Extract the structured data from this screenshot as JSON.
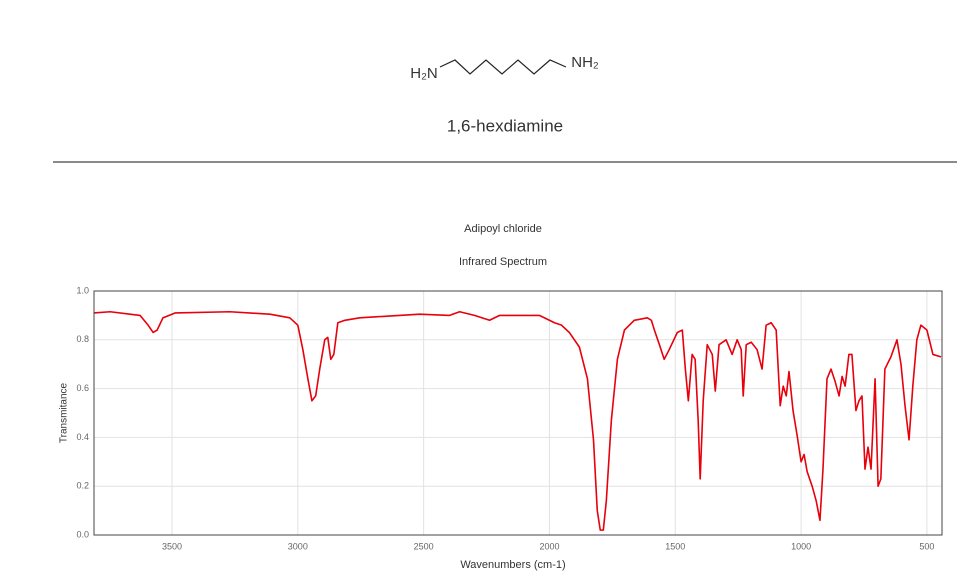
{
  "molecule": {
    "left_group": "H₂N",
    "right_group": "NH₂",
    "name": "1,6-hexdiamine"
  },
  "chart_data": {
    "type": "line",
    "title": "Adipoyl chloride",
    "subtitle": "Infrared Spectrum",
    "x_label": "Wavenumbers (cm-1)",
    "y_label": "Transmitance",
    "color": "#e8000b",
    "grid": true,
    "xlim": [
      3810,
      440
    ],
    "ylim": [
      0,
      1
    ],
    "xticks": [
      3500,
      3000,
      2500,
      2000,
      1500,
      1000,
      500
    ],
    "yticks": [
      {
        "value": 0,
        "label": "0.0"
      },
      0.2,
      0.4,
      0.6,
      0.8,
      {
        "value": 1,
        "label": "1.0"
      }
    ],
    "x": [
      3810,
      3746,
      3627,
      3595,
      3575,
      3559,
      3536,
      3488,
      3270,
      3111,
      3032,
      3000,
      2980,
      2960,
      2944,
      2929,
      2913,
      2893,
      2881,
      2869,
      2857,
      2841,
      2813,
      2754,
      2516,
      2397,
      2357,
      2298,
      2238,
      2198,
      2040,
      1980,
      1952,
      1921,
      1881,
      1849,
      1825,
      1810,
      1798,
      1786,
      1774,
      1754,
      1730,
      1702,
      1663,
      1611,
      1595,
      1583,
      1563,
      1544,
      1524,
      1492,
      1472,
      1460,
      1448,
      1433,
      1421,
      1409,
      1401,
      1389,
      1373,
      1353,
      1341,
      1326,
      1298,
      1274,
      1254,
      1238,
      1230,
      1218,
      1198,
      1175,
      1155,
      1139,
      1119,
      1099,
      1083,
      1071,
      1059,
      1048,
      1032,
      1016,
      1000,
      988,
      976,
      956,
      940,
      925,
      913,
      897,
      881,
      865,
      849,
      837,
      825,
      810,
      798,
      782,
      770,
      758,
      746,
      734,
      722,
      706,
      694,
      683,
      667,
      643,
      619,
      603,
      587,
      571,
      556,
      540,
      524,
      500,
      476,
      444
    ],
    "values": [
      0.91,
      0.915,
      0.9,
      0.86,
      0.83,
      0.84,
      0.89,
      0.91,
      0.915,
      0.905,
      0.89,
      0.86,
      0.76,
      0.64,
      0.55,
      0.57,
      0.68,
      0.8,
      0.81,
      0.72,
      0.74,
      0.87,
      0.88,
      0.89,
      0.905,
      0.9,
      0.915,
      0.9,
      0.88,
      0.9,
      0.9,
      0.87,
      0.86,
      0.83,
      0.77,
      0.64,
      0.39,
      0.1,
      0.02,
      0.02,
      0.14,
      0.47,
      0.72,
      0.84,
      0.88,
      0.89,
      0.88,
      0.84,
      0.78,
      0.72,
      0.76,
      0.83,
      0.84,
      0.68,
      0.55,
      0.74,
      0.72,
      0.47,
      0.23,
      0.55,
      0.78,
      0.74,
      0.59,
      0.78,
      0.8,
      0.74,
      0.8,
      0.76,
      0.57,
      0.78,
      0.79,
      0.76,
      0.68,
      0.86,
      0.87,
      0.84,
      0.53,
      0.61,
      0.57,
      0.67,
      0.51,
      0.41,
      0.3,
      0.33,
      0.26,
      0.2,
      0.14,
      0.06,
      0.27,
      0.64,
      0.68,
      0.63,
      0.57,
      0.65,
      0.61,
      0.74,
      0.74,
      0.51,
      0.55,
      0.57,
      0.27,
      0.36,
      0.27,
      0.64,
      0.2,
      0.23,
      0.68,
      0.73,
      0.8,
      0.7,
      0.53,
      0.39,
      0.61,
      0.8,
      0.86,
      0.84,
      0.74,
      0.73
    ]
  }
}
